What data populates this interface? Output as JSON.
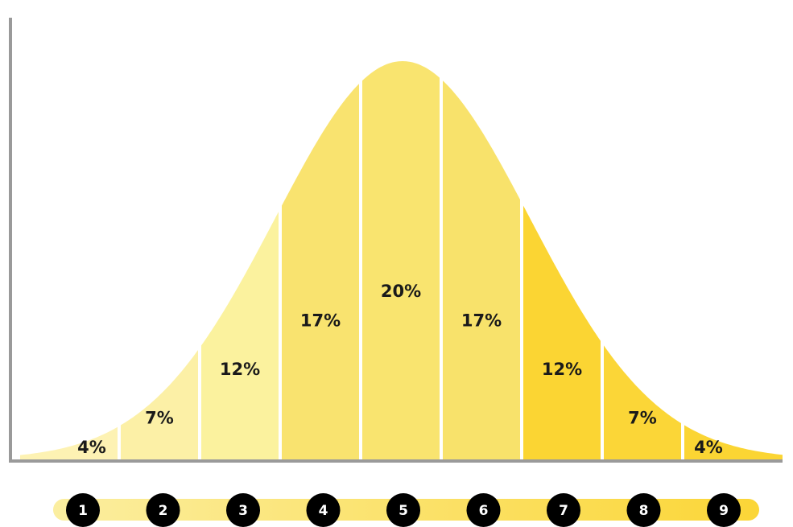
{
  "chart_data": {
    "type": "area",
    "categories": [
      "1",
      "2",
      "3",
      "4",
      "5",
      "6",
      "7",
      "8",
      "9"
    ],
    "values": [
      4,
      7,
      12,
      17,
      20,
      17,
      12,
      7,
      4
    ],
    "labels": [
      "4%",
      "7%",
      "12%",
      "17%",
      "20%",
      "17%",
      "12%",
      "7%",
      "4%"
    ],
    "title": "",
    "xlabel": "",
    "ylabel": "",
    "grid": false,
    "legend": "none",
    "colors": [
      "#fdf2b3",
      "#fcf0a6",
      "#fbf29e",
      "#f9e36f",
      "#f9e46f",
      "#f8e26b",
      "#fbd533",
      "#fbd637",
      "#fbd533"
    ]
  },
  "colors": {
    "axis": "#9a9a9a",
    "separator": "#ffffff",
    "step_circle": "#000000",
    "step_text": "#ffffff",
    "bar_start": "#fbeea0",
    "bar_end": "#fbd637"
  }
}
